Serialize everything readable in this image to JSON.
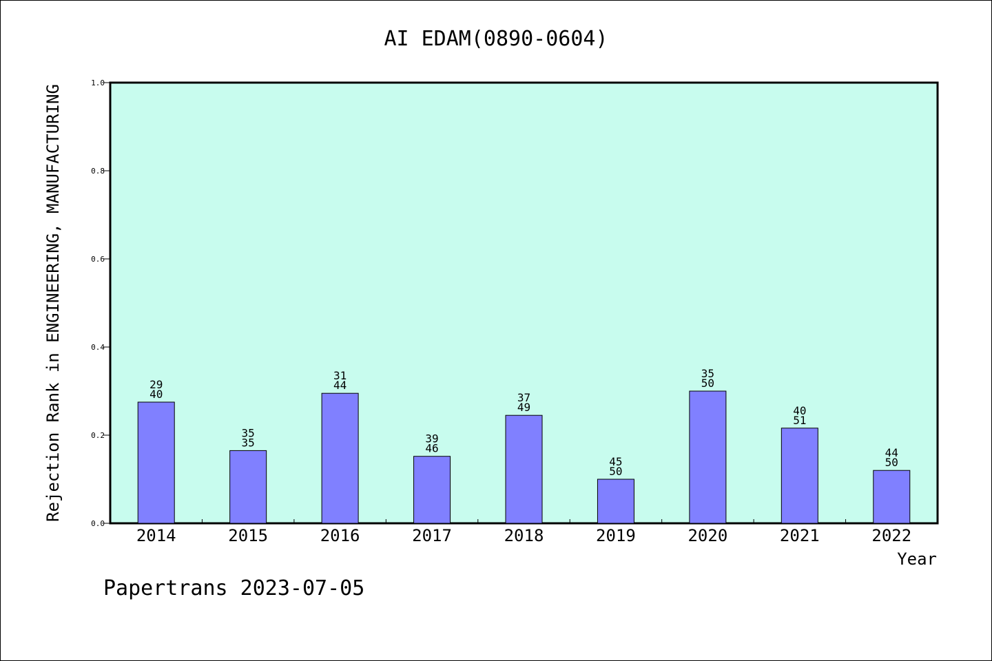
{
  "chart_data": {
    "type": "bar",
    "title": "AI EDAM(0890-0604)",
    "xlabel": "Year",
    "ylabel": "Rejection Rank in ENGINEERING, MANUFACTURING",
    "ylim": [
      0,
      1.0
    ],
    "yticks": [
      "0.0",
      "0.2",
      "0.4",
      "0.6",
      "0.8",
      "1.0"
    ],
    "categories": [
      "2014",
      "2015",
      "2016",
      "2017",
      "2018",
      "2019",
      "2020",
      "2021",
      "2022"
    ],
    "values": [
      0.275,
      0.165,
      0.295,
      0.152,
      0.245,
      0.1,
      0.3,
      0.216,
      0.12
    ],
    "labels_top": [
      "29",
      "35",
      "31",
      "39",
      "37",
      "45",
      "35",
      "40",
      "44"
    ],
    "labels_bottom": [
      "40",
      "35",
      "44",
      "46",
      "49",
      "50",
      "50",
      "51",
      "50"
    ],
    "grid": false,
    "colors": {
      "plot_background": "#c8fcee",
      "bar_fill": "#8080ff",
      "bar_stroke": "#000000"
    }
  },
  "footer": {
    "credit": "Papertrans 2023-07-05"
  }
}
